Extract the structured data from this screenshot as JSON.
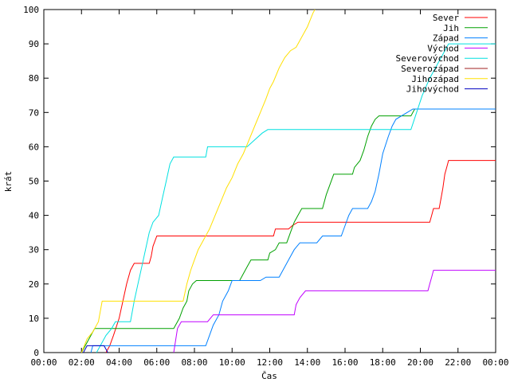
{
  "chart_data": {
    "type": "line",
    "xlabel": "Čas",
    "ylabel": "krát",
    "xlim": [
      0,
      24
    ],
    "ylim": [
      0,
      100
    ],
    "x_ticks": [
      {
        "v": 0,
        "label": "00:00"
      },
      {
        "v": 2,
        "label": "02:00"
      },
      {
        "v": 4,
        "label": "04:00"
      },
      {
        "v": 6,
        "label": "06:00"
      },
      {
        "v": 8,
        "label": "08:00"
      },
      {
        "v": 10,
        "label": "10:00"
      },
      {
        "v": 12,
        "label": "12:00"
      },
      {
        "v": 14,
        "label": "14:00"
      },
      {
        "v": 16,
        "label": "16:00"
      },
      {
        "v": 18,
        "label": "18:00"
      },
      {
        "v": 20,
        "label": "20:00"
      },
      {
        "v": 22,
        "label": "22:00"
      },
      {
        "v": 24,
        "label": "00:00"
      }
    ],
    "y_ticks": [
      {
        "v": 0,
        "label": "0"
      },
      {
        "v": 10,
        "label": "10"
      },
      {
        "v": 20,
        "label": "20"
      },
      {
        "v": 30,
        "label": "30"
      },
      {
        "v": 40,
        "label": "40"
      },
      {
        "v": 50,
        "label": "50"
      },
      {
        "v": 60,
        "label": "60"
      },
      {
        "v": 70,
        "label": "70"
      },
      {
        "v": 80,
        "label": "80"
      },
      {
        "v": 90,
        "label": "90"
      },
      {
        "v": 100,
        "label": "100"
      }
    ],
    "grid": false,
    "legend_position": "top-right",
    "series": [
      {
        "name": "Sever",
        "color": "#ff0000",
        "points": [
          [
            3.3,
            0
          ],
          [
            3.5,
            2
          ],
          [
            3.7,
            5
          ],
          [
            4.0,
            10
          ],
          [
            4.2,
            15
          ],
          [
            4.4,
            20
          ],
          [
            4.6,
            24
          ],
          [
            4.8,
            26
          ],
          [
            5.6,
            26
          ],
          [
            5.7,
            28
          ],
          [
            5.8,
            31
          ],
          [
            6.0,
            34
          ],
          [
            12.2,
            34
          ],
          [
            12.3,
            36
          ],
          [
            13.0,
            36
          ],
          [
            13.2,
            37
          ],
          [
            13.5,
            38
          ],
          [
            20.5,
            38
          ],
          [
            20.6,
            40
          ],
          [
            20.7,
            42
          ],
          [
            21.0,
            42
          ],
          [
            21.1,
            45
          ],
          [
            21.2,
            48
          ],
          [
            21.3,
            52
          ],
          [
            21.4,
            54
          ],
          [
            21.5,
            56
          ],
          [
            24,
            56
          ]
        ]
      },
      {
        "name": "Jih",
        "color": "#00a000",
        "points": [
          [
            2.0,
            0
          ],
          [
            2.2,
            2
          ],
          [
            2.5,
            5
          ],
          [
            2.7,
            7
          ],
          [
            6.9,
            7
          ],
          [
            7.2,
            10
          ],
          [
            7.4,
            13
          ],
          [
            7.6,
            15
          ],
          [
            7.7,
            18
          ],
          [
            7.9,
            20
          ],
          [
            8.1,
            21
          ],
          [
            10.4,
            21
          ],
          [
            10.6,
            23
          ],
          [
            10.8,
            25
          ],
          [
            11.0,
            27
          ],
          [
            11.9,
            27
          ],
          [
            12.0,
            29
          ],
          [
            12.3,
            30
          ],
          [
            12.5,
            32
          ],
          [
            12.9,
            32
          ],
          [
            13.1,
            35
          ],
          [
            13.3,
            38
          ],
          [
            13.5,
            40
          ],
          [
            13.7,
            42
          ],
          [
            14.8,
            42
          ],
          [
            15.0,
            46
          ],
          [
            15.2,
            49
          ],
          [
            15.4,
            52
          ],
          [
            16.4,
            52
          ],
          [
            16.5,
            54
          ],
          [
            16.8,
            56
          ],
          [
            17.0,
            59
          ],
          [
            17.2,
            63
          ],
          [
            17.4,
            66
          ],
          [
            17.6,
            68
          ],
          [
            17.8,
            69
          ],
          [
            19.5,
            69
          ],
          [
            19.7,
            71
          ],
          [
            24,
            71
          ]
        ]
      },
      {
        "name": "Západ",
        "color": "#0080ff",
        "points": [
          [
            2.5,
            0
          ],
          [
            2.6,
            2
          ],
          [
            7.5,
            2
          ],
          [
            8.6,
            2
          ],
          [
            8.8,
            5
          ],
          [
            9.0,
            8
          ],
          [
            9.3,
            11
          ],
          [
            9.5,
            15
          ],
          [
            9.8,
            18
          ],
          [
            10.0,
            21
          ],
          [
            11.5,
            21
          ],
          [
            11.8,
            22
          ],
          [
            12.5,
            22
          ],
          [
            12.7,
            24
          ],
          [
            13.0,
            27
          ],
          [
            13.3,
            30
          ],
          [
            13.6,
            32
          ],
          [
            14.5,
            32
          ],
          [
            14.8,
            34
          ],
          [
            15.8,
            34
          ],
          [
            16.0,
            37
          ],
          [
            16.2,
            40
          ],
          [
            16.4,
            42
          ],
          [
            17.2,
            42
          ],
          [
            17.4,
            44
          ],
          [
            17.6,
            47
          ],
          [
            17.8,
            52
          ],
          [
            18.0,
            58
          ],
          [
            18.3,
            63
          ],
          [
            18.5,
            66
          ],
          [
            18.7,
            68
          ],
          [
            19.0,
            69
          ],
          [
            19.3,
            70
          ],
          [
            19.6,
            71
          ],
          [
            24,
            71
          ]
        ]
      },
      {
        "name": "Východ",
        "color": "#c000ff",
        "points": [
          [
            6.9,
            0
          ],
          [
            7.1,
            7
          ],
          [
            7.3,
            9
          ],
          [
            8.7,
            9
          ],
          [
            9.0,
            11
          ],
          [
            13.3,
            11
          ],
          [
            13.4,
            14
          ],
          [
            13.6,
            16
          ],
          [
            13.9,
            18
          ],
          [
            20.4,
            18
          ],
          [
            20.5,
            20
          ],
          [
            20.6,
            22
          ],
          [
            20.7,
            24
          ],
          [
            24,
            24
          ]
        ]
      },
      {
        "name": "Severovýchod",
        "color": "#00e0e0",
        "points": [
          [
            2.8,
            0
          ],
          [
            3.0,
            2
          ],
          [
            3.3,
            5
          ],
          [
            3.6,
            7
          ],
          [
            3.8,
            9
          ],
          [
            4.6,
            9
          ],
          [
            4.8,
            15
          ],
          [
            5.0,
            20
          ],
          [
            5.2,
            25
          ],
          [
            5.4,
            30
          ],
          [
            5.6,
            35
          ],
          [
            5.8,
            38
          ],
          [
            6.1,
            40
          ],
          [
            6.3,
            45
          ],
          [
            6.5,
            50
          ],
          [
            6.7,
            55
          ],
          [
            6.9,
            57
          ],
          [
            8.6,
            57
          ],
          [
            8.7,
            60
          ],
          [
            10.8,
            60
          ],
          [
            11.2,
            62
          ],
          [
            11.6,
            64
          ],
          [
            11.9,
            65
          ],
          [
            19.5,
            65
          ],
          [
            19.8,
            70
          ],
          [
            20.1,
            75
          ],
          [
            20.5,
            80
          ],
          [
            21.0,
            85
          ],
          [
            21.5,
            90
          ],
          [
            24,
            90
          ]
        ]
      },
      {
        "name": "Severozápad",
        "color": "#a02020",
        "points": []
      },
      {
        "name": "Jihozápad",
        "color": "#ffe000",
        "points": [
          [
            2.0,
            0
          ],
          [
            2.3,
            4
          ],
          [
            2.6,
            6
          ],
          [
            2.9,
            9
          ],
          [
            3.1,
            15
          ],
          [
            7.4,
            15
          ],
          [
            7.6,
            20
          ],
          [
            7.8,
            24
          ],
          [
            8.0,
            27
          ],
          [
            8.2,
            30
          ],
          [
            8.5,
            33
          ],
          [
            8.8,
            36
          ],
          [
            9.1,
            40
          ],
          [
            9.4,
            44
          ],
          [
            9.7,
            48
          ],
          [
            10.0,
            51
          ],
          [
            10.3,
            55
          ],
          [
            10.6,
            58
          ],
          [
            10.9,
            62
          ],
          [
            11.2,
            66
          ],
          [
            11.5,
            70
          ],
          [
            11.8,
            74
          ],
          [
            12.0,
            77
          ],
          [
            12.2,
            79
          ],
          [
            12.5,
            83
          ],
          [
            12.8,
            86
          ],
          [
            13.1,
            88
          ],
          [
            13.4,
            89
          ],
          [
            13.7,
            92
          ],
          [
            14.0,
            95
          ],
          [
            14.3,
            99
          ],
          [
            14.4,
            100
          ]
        ]
      },
      {
        "name": "Jihovýchod",
        "color": "#0000c0",
        "points": [
          [
            2.1,
            0
          ],
          [
            2.3,
            2
          ],
          [
            3.2,
            2
          ],
          [
            3.4,
            0
          ]
        ]
      }
    ]
  }
}
